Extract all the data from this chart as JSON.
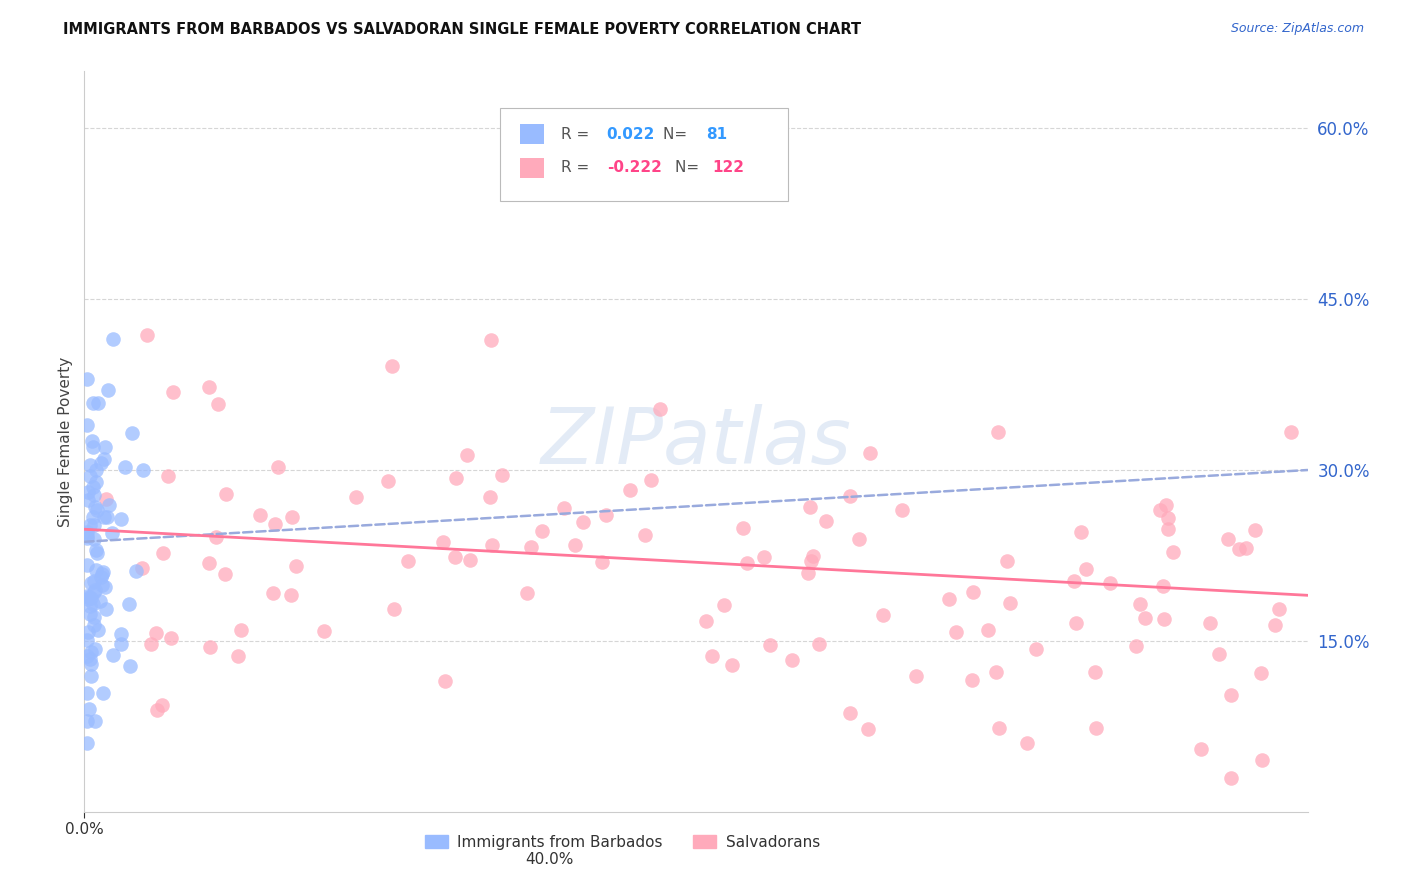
{
  "title": "IMMIGRANTS FROM BARBADOS VS SALVADORAN SINGLE FEMALE POVERTY CORRELATION CHART",
  "source": "Source: ZipAtlas.com",
  "ylabel": "Single Female Poverty",
  "right_yticks": [
    "60.0%",
    "45.0%",
    "30.0%",
    "15.0%"
  ],
  "right_ytick_vals": [
    0.6,
    0.45,
    0.3,
    0.15
  ],
  "xlim": [
    0.0,
    0.4
  ],
  "ylim": [
    0.0,
    0.65
  ],
  "blue_color": "#99bbff",
  "pink_color": "#ffaabb",
  "blue_line_color": "#99aadd",
  "pink_line_color": "#ff7799",
  "legend_label_blue": "Immigrants from Barbados",
  "legend_label_pink": "Salvadorans",
  "grid_color": "#cccccc",
  "watermark_text": "ZIPatlas",
  "blue_trend_start": 0.237,
  "blue_trend_end": 0.3,
  "pink_trend_start": 0.248,
  "pink_trend_end": 0.19
}
